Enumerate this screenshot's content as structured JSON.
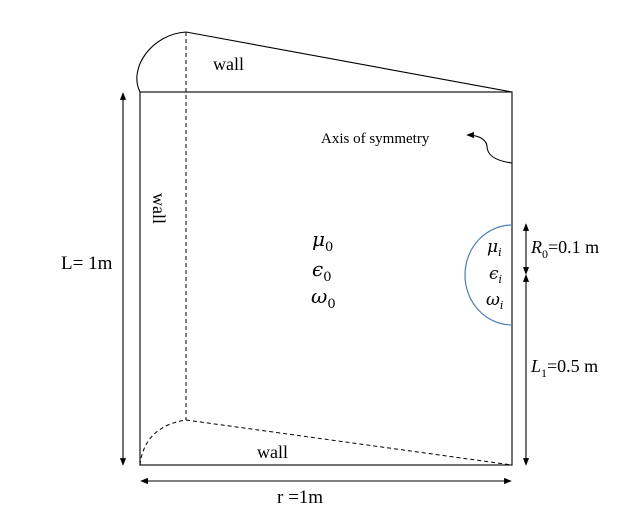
{
  "labels": {
    "wall_top": "wall",
    "wall_left": "wall",
    "wall_bottom": "wall",
    "axis_of_symmetry": "Axis of symmetry",
    "length_L": "L= 1m",
    "radius_r": "r =1m",
    "outer_mu": "μ",
    "outer_mu_sub": "0",
    "outer_eps": "ϵ",
    "outer_eps_sub": "0",
    "outer_omega": "ω",
    "outer_omega_sub": "0",
    "inner_mu": "μ",
    "inner_mu_sub": "i",
    "inner_eps": "ϵ",
    "inner_eps_sub": "i",
    "inner_omega": "ω",
    "inner_omega_sub": "i",
    "R0_symbol": "R",
    "R0_sub": "0",
    "R0_value": "=0.1 m",
    "L1_symbol": "L",
    "L1_sub": "1",
    "L1_value": "=0.5 m"
  },
  "colors": {
    "line": "#000000",
    "droplet_outline": "#4a7fb5"
  }
}
